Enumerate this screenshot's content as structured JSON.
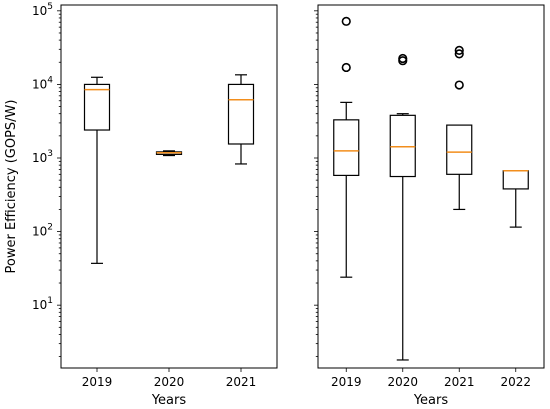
{
  "chart_data": [
    {
      "type": "box",
      "ylabel": "Power Efficiency (GOPS/W)",
      "xlabel": "Years",
      "yscale": "log",
      "ylim": [
        1.4,
        120000
      ],
      "yticks": [
        {
          "value": 10,
          "label": "10",
          "sup": "1"
        },
        {
          "value": 100,
          "label": "10",
          "sup": "2"
        },
        {
          "value": 1000,
          "label": "10",
          "sup": "3"
        },
        {
          "value": 10000,
          "label": "10",
          "sup": "4"
        },
        {
          "value": 100000,
          "label": "10",
          "sup": "5"
        }
      ],
      "categories": [
        "2019",
        "2020",
        "2021"
      ],
      "boxes": [
        {
          "category": "2019",
          "whislo": 37,
          "q1": 2400,
          "med": 8500,
          "q3": 10000,
          "whishi": 12500,
          "fliers": []
        },
        {
          "category": "2020",
          "whislo": 1080,
          "q1": 1120,
          "med": 1180,
          "q3": 1210,
          "whishi": 1250,
          "fliers": []
        },
        {
          "category": "2021",
          "whislo": 830,
          "q1": 1550,
          "med": 6200,
          "q3": 10000,
          "whishi": 13500,
          "fliers": []
        }
      ]
    },
    {
      "type": "box",
      "ylabel": "",
      "xlabel": "Years",
      "yscale": "log",
      "ylim": [
        1.4,
        120000
      ],
      "categories": [
        "2019",
        "2020",
        "2021",
        "2022"
      ],
      "boxes": [
        {
          "category": "2019",
          "whislo": 24,
          "q1": 580,
          "med": 1250,
          "q3": 3300,
          "whishi": 5700,
          "fliers": [
            17000,
            72000
          ]
        },
        {
          "category": "2020",
          "whislo": 1.8,
          "q1": 560,
          "med": 1420,
          "q3": 3800,
          "whishi": 4000,
          "fliers": [
            21000,
            22500
          ]
        },
        {
          "category": "2021",
          "whislo": 200,
          "q1": 600,
          "med": 1200,
          "q3": 2800,
          "whishi": 2800,
          "fliers": [
            9800,
            26000,
            29000
          ]
        },
        {
          "category": "2022",
          "whislo": 115,
          "q1": 380,
          "med": 670,
          "q3": 670,
          "whishi": 670,
          "fliers": []
        }
      ]
    }
  ]
}
